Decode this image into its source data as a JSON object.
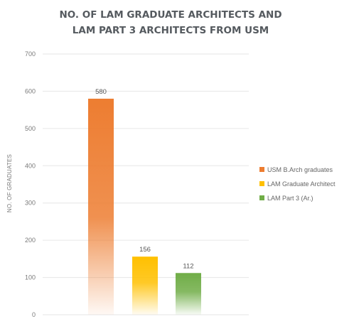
{
  "chart_data": {
    "type": "bar",
    "title_lines": [
      "NO. OF LAM GRADUATE ARCHITECTS AND",
      "LAM PART 3 ARCHITECTS FROM USM"
    ],
    "xlabel": "",
    "ylabel": "NO. OF GRADUATES",
    "ylim": [
      0,
      700
    ],
    "yticks": [
      0,
      100,
      200,
      300,
      400,
      500,
      600,
      700
    ],
    "grid": true,
    "legend_position": "right",
    "series": [
      {
        "name": "USM B.Arch graduates",
        "value": 580,
        "label": "580",
        "color": "#ed7d31"
      },
      {
        "name": "LAM Graduate Architect",
        "value": 156,
        "label": "156",
        "color": "#ffc000"
      },
      {
        "name": "LAM Part 3 (Ar.)",
        "value": 112,
        "label": "112",
        "color": "#70ad47"
      }
    ]
  }
}
